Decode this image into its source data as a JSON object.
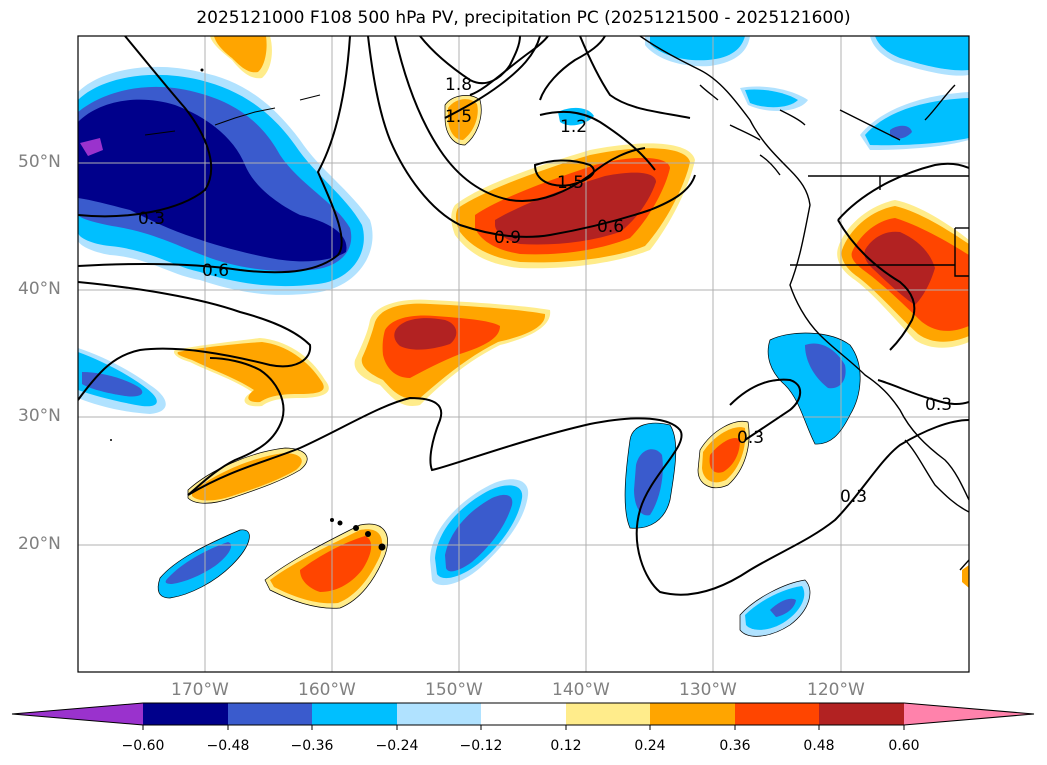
{
  "title": "2025121000 F108 500 hPa PV, precipitation PC (2025121500 - 2025121600)",
  "colors": {
    "frame": "#000000",
    "grid": "#b0b0b0",
    "background": "#ffffff",
    "tick_label": "#808080"
  },
  "axes": {
    "x_ticks": [
      {
        "lon": -170,
        "label": "170°W"
      },
      {
        "lon": -160,
        "label": "160°W"
      },
      {
        "lon": -150,
        "label": "150°W"
      },
      {
        "lon": -140,
        "label": "140°W"
      },
      {
        "lon": -130,
        "label": "130°W"
      },
      {
        "lon": -120,
        "label": "120°W"
      }
    ],
    "y_ticks": [
      {
        "lat": 50,
        "label": "50°N"
      },
      {
        "lat": 40,
        "label": "40°N"
      },
      {
        "lat": 30,
        "label": "30°N"
      },
      {
        "lat": 20,
        "label": "20°N"
      }
    ],
    "lon_range": [
      -180,
      -110
    ],
    "lat_range": [
      10,
      60
    ]
  },
  "contour_labels": [
    "1.8",
    "1.5",
    "1.2",
    "1.5",
    "0.9",
    "0.6",
    "0.3",
    "0.6",
    "0.3",
    "0.3",
    "0.3"
  ],
  "colorbar": {
    "levels": [
      "−0.60",
      "−0.48",
      "−0.36",
      "−0.24",
      "−0.12",
      "0.12",
      "0.24",
      "0.36",
      "0.48",
      "0.60"
    ],
    "colors": [
      "#9a32cd",
      "#00008b",
      "#3a5bcd",
      "#00bfff",
      "#b0e2ff",
      "#ffffff",
      "#ffec8b",
      "#ffa500",
      "#ff4500",
      "#b22222",
      "#ff82ab"
    ]
  }
}
